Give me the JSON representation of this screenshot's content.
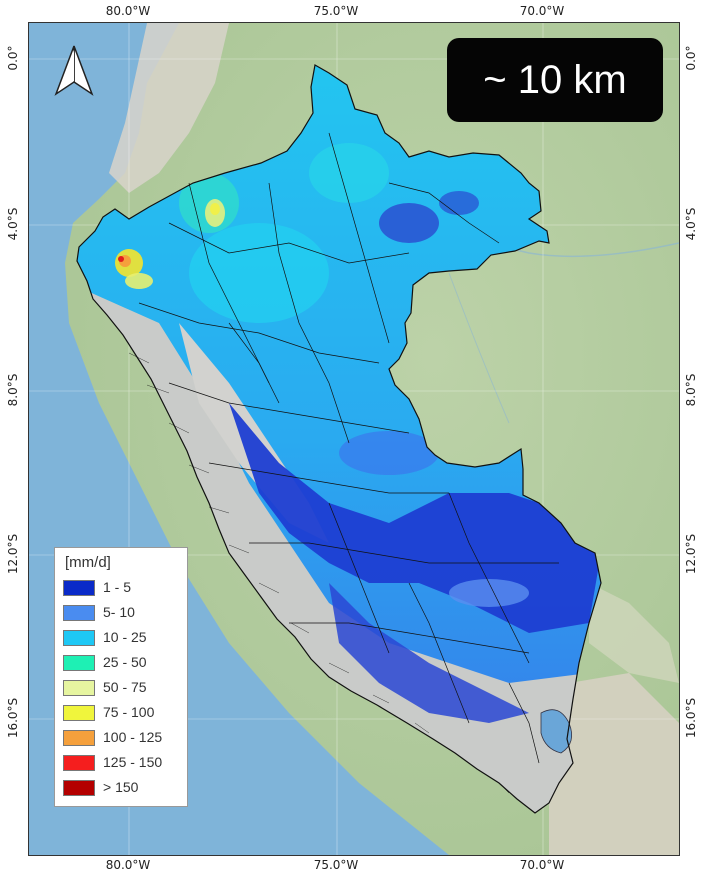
{
  "resolution_label": "~ 10 km",
  "north_arrow": "north-arrow-icon",
  "longitude_ticks": [
    "80.0°W",
    "75.0°W",
    "70.0°W"
  ],
  "latitude_ticks": [
    "0.0°",
    "4.0°S",
    "8.0°S",
    "12.0°S",
    "16.0°S"
  ],
  "legend": {
    "title": "[mm/d]",
    "items": [
      {
        "label": "1 - 5",
        "color": "#0a2ac8"
      },
      {
        "label": "5- 10",
        "color": "#4a8cf0"
      },
      {
        "label": "10 - 25",
        "color": "#1ec8f5"
      },
      {
        "label": "25 - 50",
        "color": "#1ef0b4"
      },
      {
        "label": "50 - 75",
        "color": "#e6f5a0"
      },
      {
        "label": "75 - 100",
        "color": "#f0f53c"
      },
      {
        "label": "100 - 125",
        "color": "#f5a03c"
      },
      {
        "label": "125 - 150",
        "color": "#f51e1e"
      },
      {
        "label": "> 150",
        "color": "#b40000"
      }
    ]
  },
  "colors": {
    "ocean": "#7fb4d9",
    "land": "#b9cfa6",
    "andes": "#d6d2c8"
  }
}
